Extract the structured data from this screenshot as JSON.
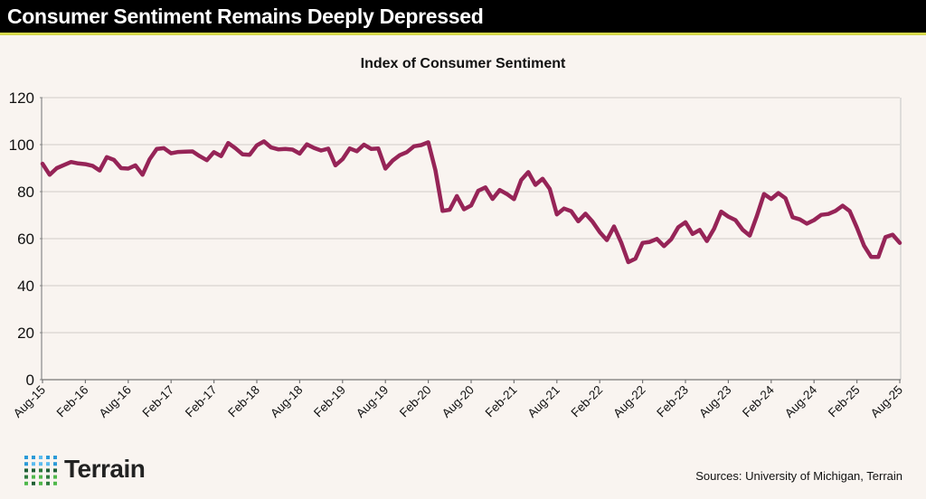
{
  "header": {
    "title": "Consumer Sentiment Remains Deeply Depressed"
  },
  "footer": {
    "source": "Sources: University of Michigan, Terrain",
    "logo_text": "Terrain"
  },
  "chart_data": {
    "type": "line",
    "title": "Index of Consumer Sentiment",
    "xlabel": "",
    "ylabel": "",
    "ylim": [
      0,
      120
    ],
    "yticks": [
      0,
      20,
      40,
      60,
      80,
      100,
      120
    ],
    "grid": true,
    "line_color": "#962457",
    "start_month": "Aug-15",
    "end_month": "Aug-25",
    "xtick_labels": [
      "Aug-15",
      "Feb-16",
      "Aug-16",
      "Feb-17",
      "Feb-17",
      "Feb-18",
      "Aug-18",
      "Feb-19",
      "Aug-19",
      "Feb-20",
      "Aug-20",
      "Feb-21",
      "Aug-21",
      "Feb-22",
      "Aug-22",
      "Feb-23",
      "Aug-23",
      "Feb-24",
      "Aug-24",
      "Feb-25",
      "Aug-25"
    ],
    "values": [
      91.9,
      87.2,
      90.0,
      91.3,
      92.6,
      92.0,
      91.7,
      91.0,
      89.0,
      94.7,
      93.5,
      90.0,
      89.8,
      91.2,
      87.2,
      93.8,
      98.2,
      98.5,
      96.3,
      96.9,
      97.0,
      97.1,
      95.1,
      93.4,
      96.8,
      95.1,
      100.7,
      98.5,
      95.9,
      95.7,
      99.7,
      101.4,
      98.8,
      98.0,
      98.2,
      97.9,
      96.2,
      100.1,
      98.6,
      97.5,
      98.3,
      91.2,
      93.8,
      98.4,
      97.2,
      100.0,
      98.2,
      98.4,
      89.8,
      93.2,
      95.5,
      96.8,
      99.3,
      99.8,
      101.0,
      89.1,
      71.8,
      72.3,
      78.1,
      72.5,
      74.1,
      80.4,
      81.8,
      76.9,
      80.7,
      79.0,
      76.8,
      84.9,
      88.3,
      82.9,
      85.5,
      81.2,
      70.3,
      72.8,
      71.7,
      67.4,
      70.6,
      67.2,
      62.8,
      59.4,
      65.2,
      58.4,
      50.0,
      51.5,
      58.2,
      58.6,
      59.9,
      56.8,
      59.7,
      64.9,
      67.0,
      62.0,
      63.7,
      59.0,
      64.2,
      71.5,
      69.4,
      67.9,
      63.8,
      61.3,
      69.7,
      79.0,
      76.9,
      79.4,
      77.2,
      69.1,
      68.2,
      66.4,
      67.9,
      70.1,
      70.5,
      71.8,
      74.0,
      71.7,
      64.7,
      57.0,
      52.2,
      52.2,
      60.7,
      61.7,
      58.2
    ]
  }
}
